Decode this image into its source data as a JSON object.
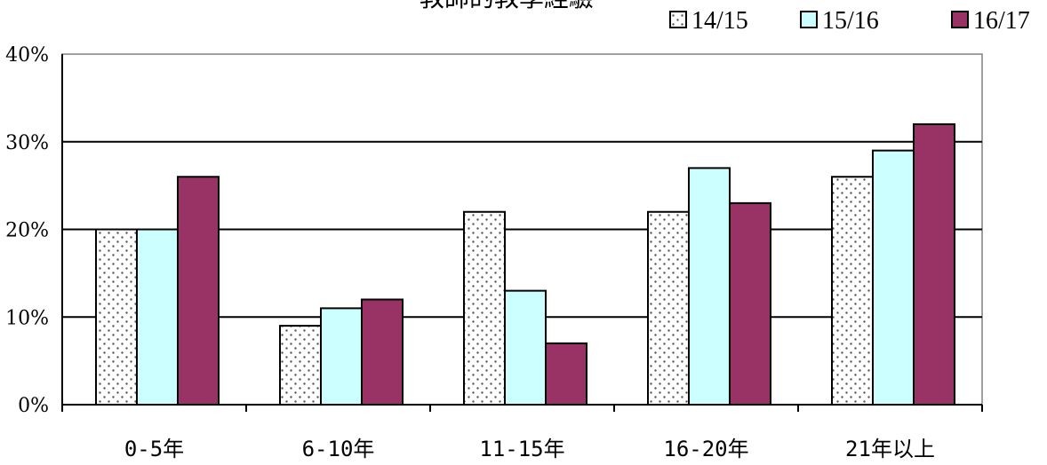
{
  "chart_data": {
    "type": "bar",
    "title": "教師的教學經驗",
    "categories": [
      "0-5年",
      "6-10年",
      "11-15年",
      "16-20年",
      "21年以上"
    ],
    "series": [
      {
        "name": "14/15",
        "values": [
          20,
          9,
          22,
          22,
          26
        ],
        "color": "#ffffff",
        "pattern": "dotted"
      },
      {
        "name": "15/16",
        "values": [
          20,
          11,
          13,
          27,
          29
        ],
        "color": "#ccffff"
      },
      {
        "name": "16/17",
        "values": [
          26,
          12,
          7,
          23,
          32
        ],
        "color": "#993366"
      }
    ],
    "y_ticks": [
      "0%",
      "10%",
      "20%",
      "30%",
      "40%"
    ],
    "ylim": [
      0,
      40
    ],
    "grid": true,
    "legend_position": "top-right"
  }
}
